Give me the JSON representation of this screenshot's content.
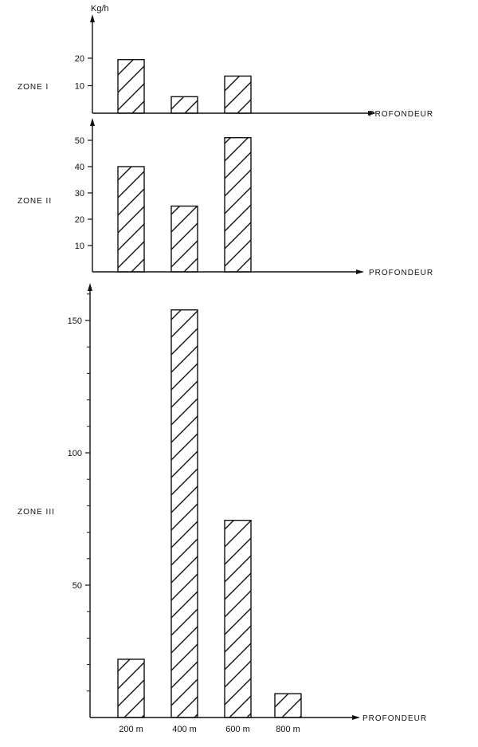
{
  "chart_data": [
    {
      "type": "bar",
      "title": "ZONE I",
      "ylabel": "Kg/h",
      "xlabel": "PROFONDEUR",
      "categories": [
        "200 m",
        "400 m",
        "600 m"
      ],
      "values": [
        19.5,
        6,
        13.5
      ],
      "yticks": [
        10,
        20
      ],
      "ylim": [
        0,
        25
      ]
    },
    {
      "type": "bar",
      "title": "ZONE II",
      "xlabel": "PROFONDEUR",
      "categories": [
        "200 m",
        "400 m",
        "600 m"
      ],
      "values": [
        40,
        25,
        51
      ],
      "yticks": [
        10,
        20,
        30,
        40,
        50
      ],
      "ylim": [
        0,
        58
      ]
    },
    {
      "type": "bar",
      "title": "ZONE III",
      "xlabel": "PROFONDEUR",
      "categories": [
        "200 m",
        "400 m",
        "600 m",
        "800 m"
      ],
      "values": [
        22,
        154,
        74.5,
        9
      ],
      "yticks": [
        50,
        100,
        150
      ],
      "ylim": [
        0,
        165
      ]
    }
  ],
  "labels": {
    "unit": "Kg/h",
    "zone1": "ZONE I",
    "zone2": "ZONE II",
    "zone3": "ZONE III",
    "xaxis": "PROFONDEUR",
    "cat": [
      "200 m",
      "400 m",
      "600 m",
      "800 m"
    ]
  }
}
